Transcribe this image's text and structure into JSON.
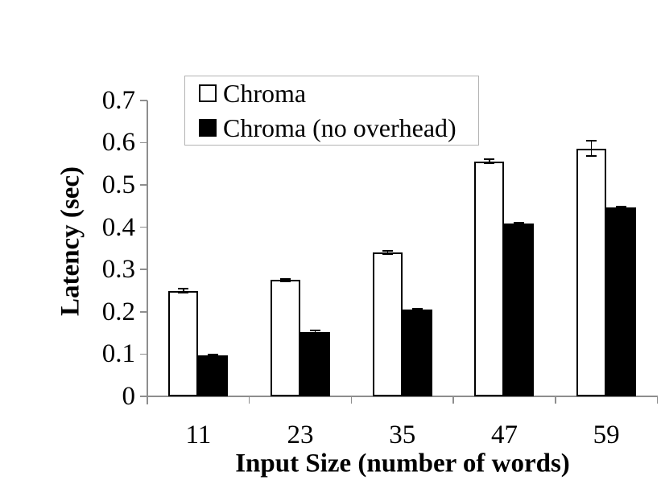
{
  "chart_data": {
    "type": "bar",
    "title": "",
    "categories": [
      "11",
      "23",
      "35",
      "47",
      "59"
    ],
    "series": [
      {
        "name": "Chroma",
        "fill": "#ffffff",
        "border": "#000000",
        "values": [
          0.25,
          0.275,
          0.34,
          0.556,
          0.586
        ],
        "errors": [
          0.004,
          0.003,
          0.004,
          0.005,
          0.018
        ]
      },
      {
        "name": "Chroma (no overhead)",
        "fill": "#000000",
        "border": "#000000",
        "values": [
          0.097,
          0.152,
          0.205,
          0.408,
          0.446
        ],
        "errors": [
          0.002,
          0.003,
          0.002,
          0.003,
          0.002
        ]
      }
    ],
    "xlabel": "Input Size (number of words)",
    "ylabel": "Latency (sec)",
    "ylim": [
      0,
      0.7
    ],
    "yticks": [
      0,
      0.1,
      0.2,
      0.3,
      0.4,
      0.5,
      0.6,
      0.7
    ],
    "ytick_labels": [
      "0",
      "0.1",
      "0.2",
      "0.3",
      "0.4",
      "0.5",
      "0.6",
      "0.7"
    ],
    "legend_position": "top-left-inside",
    "grid": false,
    "colors": {
      "axis": "#8e8e8e",
      "error_bar": "#000000",
      "background": "#ffffff",
      "legend_border": "#b3b3b3"
    }
  }
}
